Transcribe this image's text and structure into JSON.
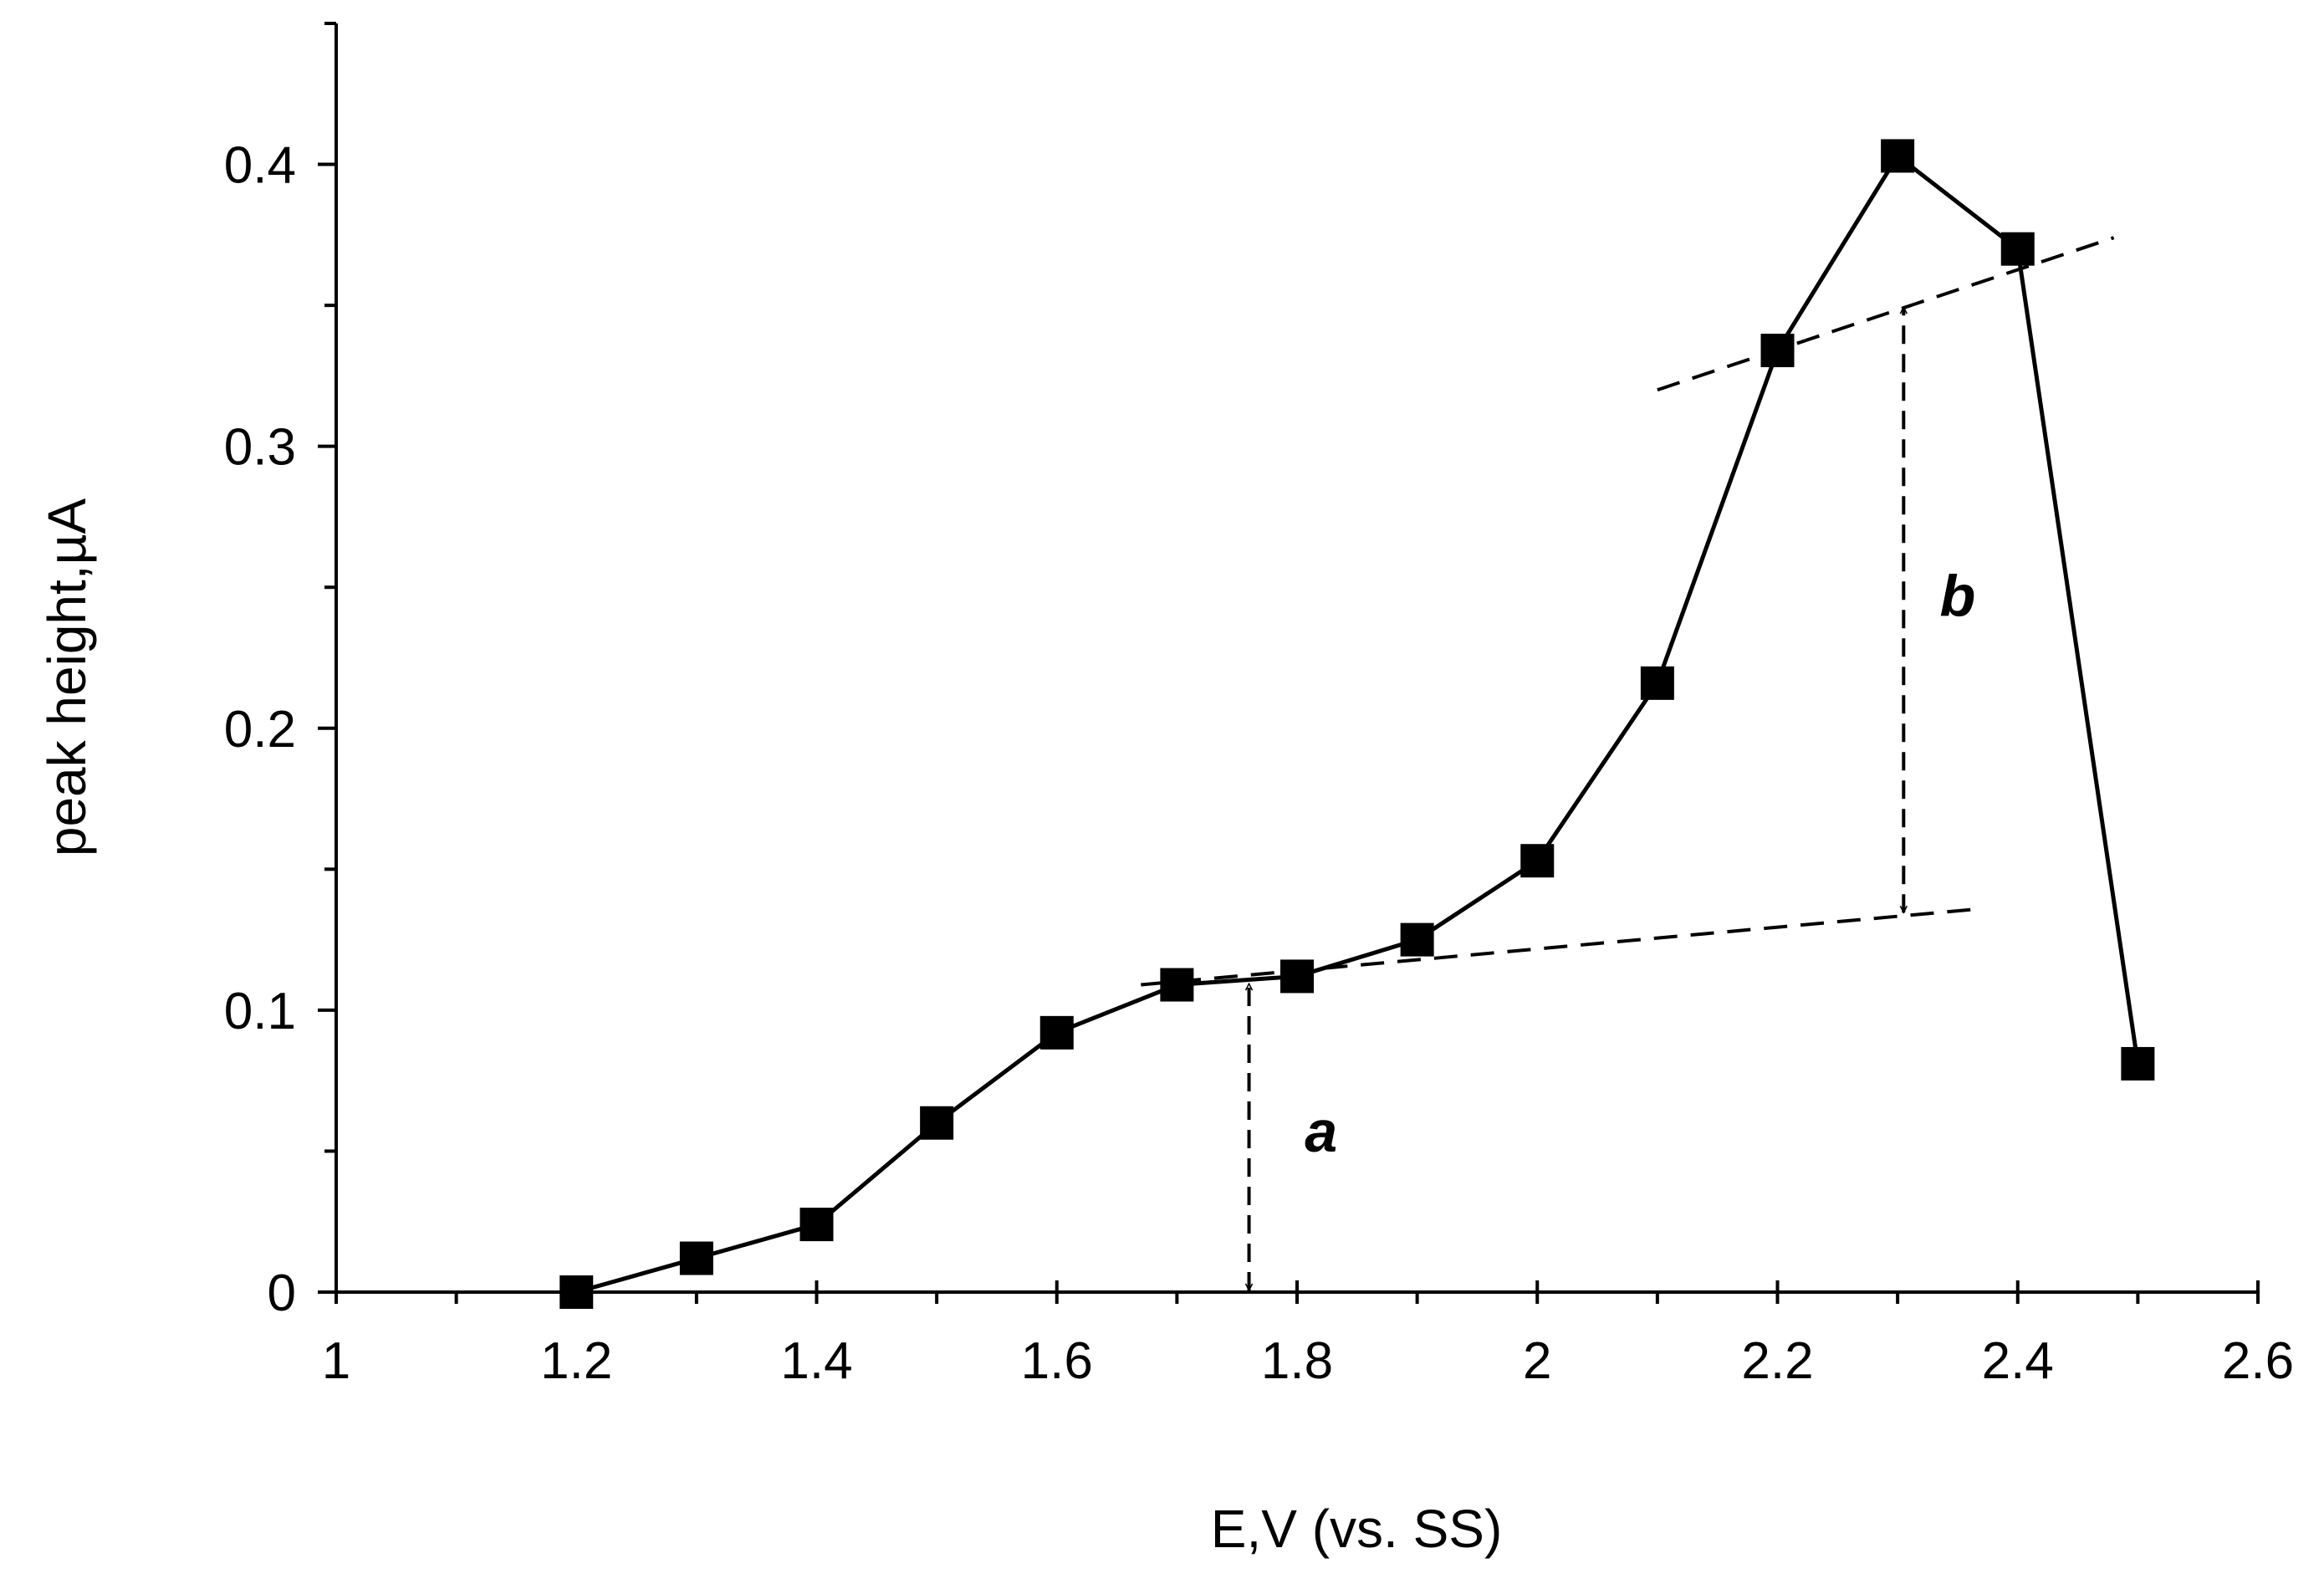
{
  "chart_data": {
    "type": "line",
    "title": "",
    "xlabel": "E,V (vs. SS)",
    "ylabel": "peak height,µA",
    "xlim": [
      1,
      2.6
    ],
    "ylim": [
      0,
      0.45
    ],
    "grid": false,
    "x_ticks": [
      1,
      1.2,
      1.4,
      1.6,
      1.8,
      2,
      2.2,
      2.4,
      2.6
    ],
    "x_tick_labels": [
      "1",
      "1.2",
      "1.4",
      "1.6",
      "1.8",
      "2",
      "2.2",
      "2.4",
      "2.6"
    ],
    "x_minor_ticks": [
      1.1,
      1.3,
      1.5,
      1.7,
      1.9,
      2.1,
      2.3,
      2.5
    ],
    "y_ticks": [
      0,
      0.1,
      0.2,
      0.3,
      0.4
    ],
    "y_tick_labels": [
      "0",
      "0.1",
      "0.2",
      "0.3",
      "0.4"
    ],
    "y_minor_ticks": [
      0.05,
      0.15,
      0.25,
      0.35,
      0.45
    ],
    "series": [
      {
        "name": "peak height",
        "marker": "square",
        "color": "#000000",
        "x": [
          1.2,
          1.3,
          1.4,
          1.5,
          1.6,
          1.7,
          1.8,
          1.9,
          2.0,
          2.1,
          2.2,
          2.3,
          2.4,
          2.5
        ],
        "y": [
          0.0,
          0.012,
          0.024,
          0.06,
          0.092,
          0.109,
          0.112,
          0.125,
          0.153,
          0.216,
          0.334,
          0.403,
          0.37,
          0.081
        ]
      }
    ],
    "reference_lines": [
      {
        "name": "lower-baseline",
        "style": "dashed",
        "from": [
          1.67,
          0.109
        ],
        "to": [
          2.37,
          0.136
        ]
      },
      {
        "name": "upper-baseline",
        "style": "dashed",
        "from": [
          2.1,
          0.32
        ],
        "to": [
          2.48,
          0.374
        ]
      }
    ],
    "annotations": [
      {
        "label": "a",
        "x": 1.76,
        "from_y": 0.0,
        "to_y": 0.11,
        "label_x": 1.82,
        "label_y": 0.057
      },
      {
        "label": "b",
        "x": 2.305,
        "from_y": 0.134,
        "to_y": 0.35,
        "label_x": 2.35,
        "label_y": 0.247
      }
    ]
  }
}
